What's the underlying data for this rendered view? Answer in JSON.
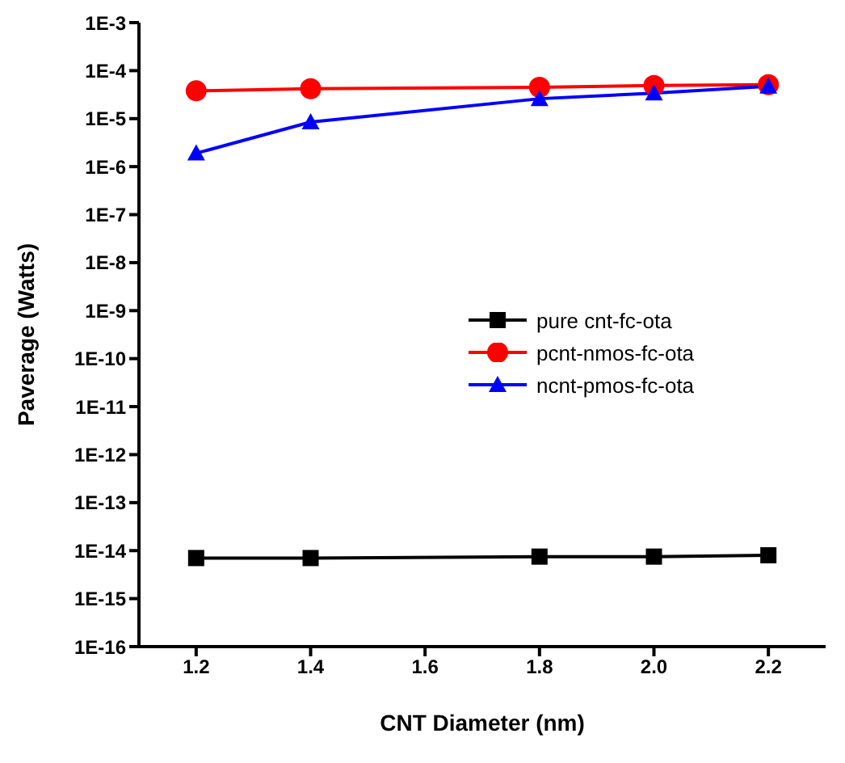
{
  "chart_data": {
    "type": "line",
    "xlabel": "CNT Diameter (nm)",
    "ylabel": "Paverage (Watts)",
    "x": [
      1.2,
      1.4,
      1.8,
      2.0,
      2.2
    ],
    "series": [
      {
        "name": "pure cnt-fc-ota",
        "color": "#000000",
        "marker": "square",
        "values": [
          7e-15,
          7e-15,
          7.5e-15,
          7.5e-15,
          8e-15
        ]
      },
      {
        "name": "pcnt-nmos-fc-ota",
        "color": "#ff0000",
        "marker": "circle",
        "values": [
          3.8e-05,
          4.2e-05,
          4.5e-05,
          4.9e-05,
          5.1e-05
        ]
      },
      {
        "name": "ncnt-pmos-fc-ota",
        "color": "#0000ff",
        "marker": "triangle",
        "values": [
          1.9e-06,
          8.5e-06,
          2.6e-05,
          3.4e-05,
          4.7e-05
        ]
      }
    ],
    "log": "y",
    "xlim": [
      1.1,
      2.3
    ],
    "xticks": [
      {
        "value": 1.2,
        "label": "1.2"
      },
      {
        "value": 1.4,
        "label": "1.4"
      },
      {
        "value": 1.6,
        "label": "1.6"
      },
      {
        "value": 1.8,
        "label": "1.8"
      },
      {
        "value": 2.0,
        "label": "2.0"
      },
      {
        "value": 2.2,
        "label": "2.2"
      }
    ],
    "ylim": [
      1e-16,
      0.001
    ],
    "yticks": [
      {
        "value": 1e-16,
        "label": "1E-16"
      },
      {
        "value": 1e-15,
        "label": "1E-15"
      },
      {
        "value": 1e-14,
        "label": "1E-14"
      },
      {
        "value": 1e-13,
        "label": "1E-13"
      },
      {
        "value": 1e-12,
        "label": "1E-12"
      },
      {
        "value": 1e-11,
        "label": "1E-11"
      },
      {
        "value": 1e-10,
        "label": "1E-10"
      },
      {
        "value": 1e-09,
        "label": "1E-9"
      },
      {
        "value": 1e-08,
        "label": "1E-8"
      },
      {
        "value": 1e-07,
        "label": "1E-7"
      },
      {
        "value": 1e-06,
        "label": "1E-6"
      },
      {
        "value": 1e-05,
        "label": "1E-5"
      },
      {
        "value": 0.0001,
        "label": "1E-4"
      },
      {
        "value": 0.001,
        "label": "1E-3"
      }
    ],
    "grid": false,
    "legend": "right",
    "line_style": "solid"
  }
}
